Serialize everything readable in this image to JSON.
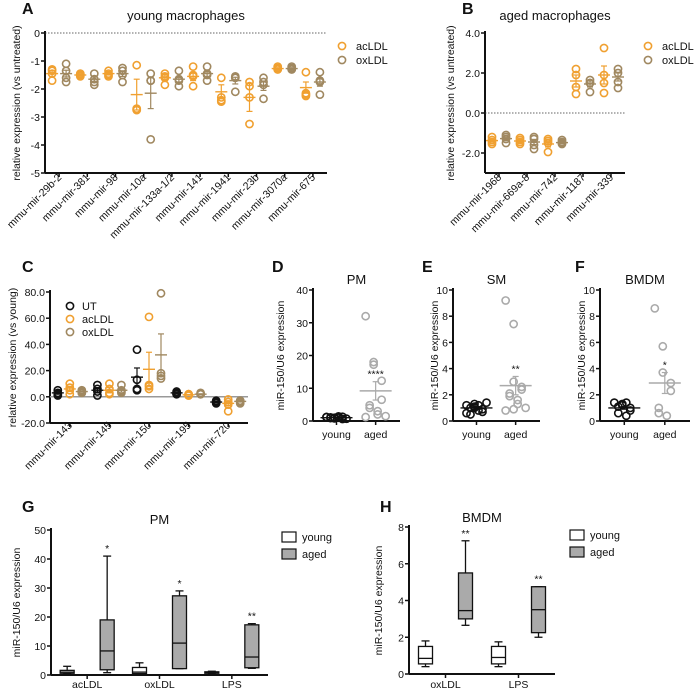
{
  "colors": {
    "UT": "#111111",
    "acLDL": "#f0a030",
    "oxLDL": "#a08860",
    "young_aged_gray": "#aaaaaa",
    "box_aged_fill": "#aaaaaa",
    "box_young_fill": "#ffffff"
  },
  "chart_data": [
    {
      "panel": "A",
      "type": "scatter",
      "title": "young macrophages",
      "ylabel": "relative expression (vs untreated)",
      "xlabel": "",
      "ylim": [
        -5,
        0
      ],
      "yticks": [
        "0",
        "-1",
        "-2",
        "-3",
        "-4",
        "-5"
      ],
      "ytick_values": [
        0,
        -1,
        -2,
        -3,
        -4,
        -5
      ],
      "reference_line": 0,
      "legend": [
        "acLDL",
        "oxLDL"
      ],
      "legend_position": "right",
      "categories": [
        "mmu-mir-29b-2",
        "mmu-mir-381",
        "mmu-mir-98",
        "mmu-mir-10a",
        "mmu-mir-133a-1/2",
        "mmu-mir-141",
        "mmu-mir-1941",
        "mmu-mir-23b",
        "mmu-mir-3070a",
        "mmu-mir-675"
      ],
      "series": [
        {
          "name": "acLDL",
          "points": [
            [
              -1.3,
              -1.35,
              -1.45,
              -1.7
            ],
            [
              -1.45,
              -1.5,
              -1.55,
              -1.5
            ],
            [
              -1.35,
              -1.45,
              -1.55,
              -1.5
            ],
            [
              -1.15,
              -2.7,
              -2.75,
              -2.75
            ],
            [
              -1.45,
              -1.55,
              -1.6,
              -1.85
            ],
            [
              -1.2,
              -1.5,
              -1.55,
              -1.9
            ],
            [
              -1.6,
              -2.3,
              -2.4,
              -2.45
            ],
            [
              -1.75,
              -1.9,
              -2.3,
              -3.25
            ],
            [
              -1.2,
              -1.25,
              -1.3,
              -1.3
            ],
            [
              -1.4,
              -2.15,
              -2.2,
              -2.25
            ]
          ],
          "mean": [
            -1.45,
            -1.5,
            -1.45,
            -2.2,
            -1.6,
            -1.55,
            -2.1,
            -2.3,
            -1.27,
            -1.95
          ],
          "sem": [
            0.1,
            0.03,
            0.05,
            0.55,
            0.1,
            0.15,
            0.25,
            0.5,
            0.03,
            0.2
          ]
        },
        {
          "name": "oxLDL",
          "points": [
            [
              -1.1,
              -1.35,
              -1.6,
              -1.75
            ],
            [
              -1.45,
              -1.65,
              -1.75,
              -1.85
            ],
            [
              -1.25,
              -1.35,
              -1.5,
              -1.75
            ],
            [
              -1.45,
              -1.7,
              -1.7,
              -3.8
            ],
            [
              -1.35,
              -1.65,
              -1.7,
              -1.9
            ],
            [
              -1.2,
              -1.45,
              -1.5,
              -1.7
            ],
            [
              -1.55,
              -1.6,
              -1.6,
              -2.1
            ],
            [
              -1.6,
              -1.75,
              -1.85,
              -2.35
            ],
            [
              -1.2,
              -1.25,
              -1.3,
              -1.3
            ],
            [
              -1.4,
              -1.7,
              -1.75,
              -2.2
            ]
          ],
          "mean": [
            -1.45,
            -1.65,
            -1.45,
            -2.15,
            -1.65,
            -1.45,
            -1.7,
            -1.9,
            -1.27,
            -1.75
          ],
          "sem": [
            0.12,
            0.08,
            0.1,
            0.55,
            0.1,
            0.1,
            0.12,
            0.15,
            0.03,
            0.15
          ]
        }
      ]
    },
    {
      "panel": "B",
      "type": "scatter",
      "title": "aged macrophages",
      "ylabel": "relative expression (vs untreated)",
      "xlabel": "",
      "ylim": [
        -3,
        4
      ],
      "yticks": [
        "4.0",
        "2.0",
        "0.0",
        "-2.0"
      ],
      "ytick_values": [
        4,
        2,
        0,
        -2
      ],
      "reference_line": 0,
      "legend": [
        "acLDL",
        "oxLDL"
      ],
      "legend_position": "right",
      "categories": [
        "mmu-mir-1968",
        "mmu-mir-669a-8",
        "mmu-mir-742",
        "mmu-mir-1187",
        "mmu-mir-339"
      ],
      "series": [
        {
          "name": "acLDL",
          "points": [
            [
              -1.2,
              -1.35,
              -1.45,
              -1.55
            ],
            [
              -1.25,
              -1.35,
              -1.45,
              -1.55
            ],
            [
              -1.3,
              -1.4,
              -1.5,
              -1.95
            ],
            [
              2.2,
              1.9,
              1.3,
              0.95
            ],
            [
              3.25,
              1.9,
              1.5,
              1.0
            ]
          ],
          "mean": [
            -1.38,
            -1.4,
            -1.55,
            1.6,
            1.9
          ],
          "sem": [
            0.07,
            0.07,
            0.15,
            0.3,
            0.45
          ]
        },
        {
          "name": "oxLDL",
          "points": [
            [
              -1.1,
              -1.2,
              -1.3,
              -1.5
            ],
            [
              -1.2,
              -1.3,
              -1.6,
              -1.8
            ],
            [
              -1.35,
              -1.45,
              -1.5,
              -1.55
            ],
            [
              1.65,
              1.5,
              1.5,
              1.05
            ],
            [
              2.2,
              2.0,
              1.55,
              1.25
            ]
          ],
          "mean": [
            -1.28,
            -1.45,
            -1.48,
            1.45,
            1.8
          ],
          "sem": [
            0.08,
            0.13,
            0.05,
            0.15,
            0.2
          ]
        }
      ]
    },
    {
      "panel": "C",
      "type": "scatter",
      "title": "",
      "ylabel": "relative expression (vs young)",
      "xlabel": "",
      "ylim": [
        -20,
        80
      ],
      "yticks": [
        "80.0",
        "60.0",
        "40.0",
        "20.0",
        "0.0",
        "-20.0"
      ],
      "ytick_values": [
        80,
        60,
        40,
        20,
        0,
        -20
      ],
      "reference_line": 0,
      "legend": [
        "UT",
        "acLDL",
        "oxLDL"
      ],
      "legend_position": "top-left",
      "categories": [
        "mmu-mir-143",
        "mmu-mir-145",
        "mmu-mir-150",
        "mmu-mir-195",
        "mmu-mir-720"
      ],
      "series": [
        {
          "name": "UT",
          "points": [
            [
              5,
              3,
              1,
              2
            ],
            [
              9,
              6,
              4,
              1
            ],
            [
              36,
              13,
              6,
              5
            ],
            [
              4,
              3,
              2,
              2
            ],
            [
              -3,
              -4,
              -5,
              -4
            ]
          ],
          "mean": [
            3,
            5,
            15,
            3,
            -4
          ],
          "sem": [
            1,
            2,
            7,
            0.5,
            0.5
          ]
        },
        {
          "name": "acLDL",
          "points": [
            [
              10,
              7,
              5,
              2
            ],
            [
              10,
              6,
              3,
              2
            ],
            [
              61,
              9,
              6,
              8
            ],
            [
              2,
              1,
              1,
              2
            ],
            [
              -2,
              -4,
              -6,
              -11
            ]
          ],
          "mean": [
            6,
            5,
            21,
            1.5,
            -5
          ],
          "sem": [
            2,
            2,
            13,
            0.3,
            2
          ]
        },
        {
          "name": "oxLDL",
          "points": [
            [
              5,
              4,
              3,
              3
            ],
            [
              9,
              5,
              4,
              3
            ],
            [
              79,
              18,
              16,
              14
            ],
            [
              3,
              2,
              2,
              2
            ],
            [
              -3,
              -3,
              -4,
              -5
            ]
          ],
          "mean": [
            4,
            5,
            32,
            2,
            -3.5
          ],
          "sem": [
            0.5,
            1.5,
            16,
            0.3,
            0.5
          ]
        }
      ]
    },
    {
      "panel": "D",
      "type": "scatter",
      "title": "PM",
      "ylabel": "miR-150/U6 expression",
      "ylim": [
        0,
        40
      ],
      "yticks": [
        "40",
        "30",
        "20",
        "10",
        "0"
      ],
      "ytick_values": [
        40,
        30,
        20,
        10,
        0
      ],
      "categories": [
        "young",
        "aged"
      ],
      "significance": "****",
      "series": [
        {
          "name": "young",
          "points": [
            1.2,
            0.8,
            1.0,
            1.3,
            0.6,
            1.1,
            0.9,
            1.4,
            1.0,
            0.7,
            1.2
          ],
          "mean": 1.0,
          "sem": 0.1
        },
        {
          "name": "aged",
          "points": [
            32,
            18,
            17.2,
            12.3,
            6.5,
            4.8,
            4.0,
            3.0,
            2.0,
            1.5,
            1.2
          ],
          "mean": 9.2,
          "sem": 2.8
        }
      ]
    },
    {
      "panel": "E",
      "type": "scatter",
      "title": "SM",
      "ylabel": "miR-150/U6 expression",
      "ylim": [
        0,
        10
      ],
      "yticks": [
        "10",
        "8",
        "6",
        "4",
        "2",
        "0"
      ],
      "ytick_values": [
        10,
        8,
        6,
        4,
        2,
        0
      ],
      "categories": [
        "young",
        "aged"
      ],
      "significance": "**",
      "series": [
        {
          "name": "young",
          "points": [
            1.2,
            1.3,
            1.1,
            0.9,
            0.7,
            0.5,
            1.0,
            1.2,
            0.8,
            1.4,
            0.6,
            1.0
          ],
          "mean": 1.0,
          "sem": 0.1
        },
        {
          "name": "aged",
          "points": [
            9.2,
            7.4,
            3.0,
            2.6,
            2.4,
            2.1,
            1.9,
            1.6,
            1.3,
            1.0,
            0.8,
            0.9
          ],
          "mean": 2.7,
          "sem": 0.7
        }
      ]
    },
    {
      "panel": "F",
      "type": "scatter",
      "title": "BMDM",
      "ylabel": "miR-150/U6 expression",
      "ylim": [
        0,
        10
      ],
      "yticks": [
        "10",
        "8",
        "6",
        "4",
        "2",
        "0"
      ],
      "ytick_values": [
        10,
        8,
        6,
        4,
        2,
        0
      ],
      "categories": [
        "young",
        "aged"
      ],
      "significance": "*",
      "series": [
        {
          "name": "young",
          "points": [
            1.4,
            1.2,
            1.3,
            1.0,
            0.8,
            0.6,
            1.1,
            1.4,
            0.4
          ],
          "mean": 1.0,
          "sem": 0.1
        },
        {
          "name": "aged",
          "points": [
            8.6,
            5.7,
            3.7,
            2.9,
            2.3,
            1.0,
            0.6,
            0.4
          ],
          "mean": 2.9,
          "sem": 0.8
        }
      ]
    },
    {
      "panel": "G",
      "type": "box",
      "title": "PM",
      "ylabel": "miR-150/U6 expression",
      "ylim": [
        0,
        50
      ],
      "yticks": [
        "50",
        "40",
        "30",
        "20",
        "10",
        "0"
      ],
      "ytick_values": [
        50,
        40,
        30,
        20,
        10,
        0
      ],
      "categories": [
        "acLDL",
        "oxLDL",
        "LPS"
      ],
      "legend": [
        "young",
        "aged"
      ],
      "legend_position": "top-right",
      "significance": [
        "*",
        "*",
        "**"
      ],
      "series": [
        {
          "name": "young",
          "boxes": [
            {
              "min": 0.3,
              "q1": 0.6,
              "median": 1.0,
              "q3": 1.6,
              "max": 3.0
            },
            {
              "min": 0.3,
              "q1": 0.5,
              "median": 1.0,
              "q3": 2.6,
              "max": 4.2
            },
            {
              "min": 0.4,
              "q1": 0.6,
              "median": 0.9,
              "q3": 1.1,
              "max": 1.3
            }
          ]
        },
        {
          "name": "aged",
          "boxes": [
            {
              "min": 0.8,
              "q1": 1.8,
              "median": 8.3,
              "q3": 19.0,
              "max": 41.0
            },
            {
              "min": 2.2,
              "q1": 2.2,
              "median": 11.0,
              "q3": 27.3,
              "max": 29.0
            },
            {
              "min": 2.3,
              "q1": 2.5,
              "median": 6.2,
              "q3": 17.3,
              "max": 17.7
            }
          ]
        }
      ]
    },
    {
      "panel": "H",
      "type": "box",
      "title": "BMDM",
      "ylabel": "miR-150/U6 expression",
      "ylim": [
        0,
        8
      ],
      "yticks": [
        "8",
        "6",
        "4",
        "2",
        "0"
      ],
      "ytick_values": [
        8,
        6,
        4,
        2,
        0
      ],
      "categories": [
        "oxLDL",
        "LPS"
      ],
      "legend": [
        "young",
        "aged"
      ],
      "legend_position": "top-right",
      "significance": [
        "**",
        "**"
      ],
      "series": [
        {
          "name": "young",
          "boxes": [
            {
              "min": 0.4,
              "q1": 0.55,
              "median": 0.85,
              "q3": 1.5,
              "max": 1.8
            },
            {
              "min": 0.4,
              "q1": 0.55,
              "median": 0.9,
              "q3": 1.5,
              "max": 1.75
            }
          ]
        },
        {
          "name": "aged",
          "boxes": [
            {
              "min": 2.65,
              "q1": 3.0,
              "median": 3.45,
              "q3": 5.5,
              "max": 7.25
            },
            {
              "min": 2.0,
              "q1": 2.25,
              "median": 3.5,
              "q3": 4.75,
              "max": 4.75
            }
          ]
        }
      ]
    }
  ]
}
